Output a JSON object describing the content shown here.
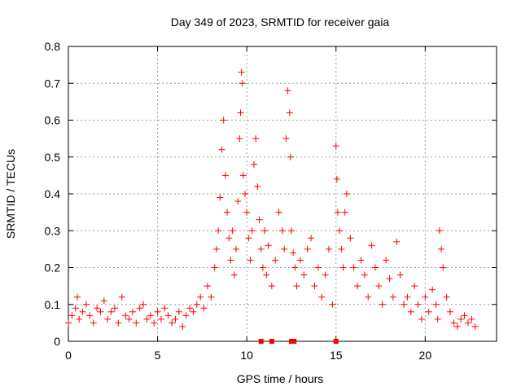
{
  "chart_data": {
    "type": "scatter",
    "title": "Day 349 of 2023, SRMTID for receiver gaia",
    "xlabel": "GPS time / hours",
    "ylabel": "SRMTID / TECUs",
    "xlim": [
      0,
      24
    ],
    "ylim": [
      0,
      0.8
    ],
    "xticks": [
      0,
      5,
      10,
      15,
      20
    ],
    "yticks": [
      0,
      0.1,
      0.2,
      0.3,
      0.4,
      0.5,
      0.6,
      0.7,
      0.8
    ],
    "xtick_labels": [
      "0",
      "5",
      "10",
      "15",
      "20"
    ],
    "ytick_labels": [
      "0",
      "0.1",
      "0.2",
      "0.3",
      "0.4",
      "0.5",
      "0.6",
      "0.7",
      "0.8"
    ],
    "grid": true,
    "marker": "+",
    "color": "#ff0000",
    "series": [
      {
        "name": "SRMTID",
        "x": [
          0.0,
          0.2,
          0.4,
          0.5,
          0.6,
          0.8,
          1.0,
          1.2,
          1.4,
          1.6,
          1.8,
          2.0,
          2.2,
          2.4,
          2.6,
          2.8,
          3.0,
          3.2,
          3.4,
          3.6,
          3.8,
          4.0,
          4.2,
          4.4,
          4.6,
          4.8,
          5.0,
          5.2,
          5.4,
          5.6,
          5.8,
          6.0,
          6.2,
          6.4,
          6.6,
          6.8,
          7.0,
          7.2,
          7.4,
          7.6,
          7.8,
          8.0,
          8.2,
          8.3,
          8.4,
          8.5,
          8.6,
          8.7,
          8.8,
          8.9,
          9.0,
          9.1,
          9.2,
          9.3,
          9.4,
          9.5,
          9.6,
          9.65,
          9.7,
          9.75,
          9.8,
          9.9,
          10.0,
          10.1,
          10.2,
          10.3,
          10.4,
          10.5,
          10.6,
          10.7,
          10.8,
          10.9,
          11.0,
          11.1,
          11.2,
          11.4,
          11.6,
          11.8,
          12.0,
          12.1,
          12.2,
          12.3,
          12.4,
          12.45,
          12.5,
          12.6,
          12.7,
          12.8,
          13.0,
          13.2,
          13.4,
          13.6,
          13.8,
          14.0,
          14.2,
          14.4,
          14.6,
          14.8,
          15.0,
          15.05,
          15.1,
          15.2,
          15.3,
          15.4,
          15.5,
          15.6,
          15.8,
          16.0,
          16.2,
          16.4,
          16.6,
          16.8,
          17.0,
          17.2,
          17.4,
          17.6,
          17.8,
          18.0,
          18.2,
          18.4,
          18.6,
          18.8,
          19.0,
          19.2,
          19.4,
          19.6,
          19.8,
          20.0,
          20.2,
          20.4,
          20.6,
          20.7,
          20.8,
          20.9,
          21.0,
          21.2,
          21.4,
          21.6,
          21.8,
          22.0,
          22.2,
          22.4,
          22.6,
          22.8
        ],
        "y": [
          0.05,
          0.07,
          0.09,
          0.12,
          0.06,
          0.08,
          0.1,
          0.07,
          0.05,
          0.09,
          0.08,
          0.11,
          0.06,
          0.08,
          0.09,
          0.05,
          0.12,
          0.07,
          0.06,
          0.08,
          0.05,
          0.09,
          0.1,
          0.06,
          0.07,
          0.05,
          0.08,
          0.06,
          0.09,
          0.07,
          0.05,
          0.06,
          0.08,
          0.04,
          0.07,
          0.09,
          0.08,
          0.1,
          0.12,
          0.09,
          0.15,
          0.12,
          0.2,
          0.25,
          0.3,
          0.39,
          0.52,
          0.6,
          0.45,
          0.35,
          0.28,
          0.22,
          0.3,
          0.18,
          0.25,
          0.38,
          0.55,
          0.62,
          0.73,
          0.7,
          0.45,
          0.4,
          0.35,
          0.28,
          0.22,
          0.3,
          0.48,
          0.55,
          0.42,
          0.33,
          0.25,
          0.2,
          0.3,
          0.18,
          0.26,
          0.15,
          0.22,
          0.35,
          0.3,
          0.25,
          0.55,
          0.68,
          0.62,
          0.5,
          0.3,
          0.24,
          0.2,
          0.15,
          0.22,
          0.18,
          0.25,
          0.28,
          0.15,
          0.2,
          0.12,
          0.18,
          0.25,
          0.1,
          0.53,
          0.44,
          0.35,
          0.3,
          0.25,
          0.2,
          0.35,
          0.4,
          0.28,
          0.2,
          0.15,
          0.22,
          0.18,
          0.12,
          0.26,
          0.2,
          0.15,
          0.1,
          0.22,
          0.17,
          0.12,
          0.27,
          0.18,
          0.1,
          0.12,
          0.08,
          0.15,
          0.1,
          0.06,
          0.12,
          0.08,
          0.14,
          0.1,
          0.06,
          0.3,
          0.25,
          0.2,
          0.12,
          0.08,
          0.05,
          0.04,
          0.06,
          0.07,
          0.05,
          0.06,
          0.04
        ]
      }
    ],
    "zero_markers_x": [
      10.8,
      11.4,
      12.5,
      12.65,
      15.0
    ]
  }
}
